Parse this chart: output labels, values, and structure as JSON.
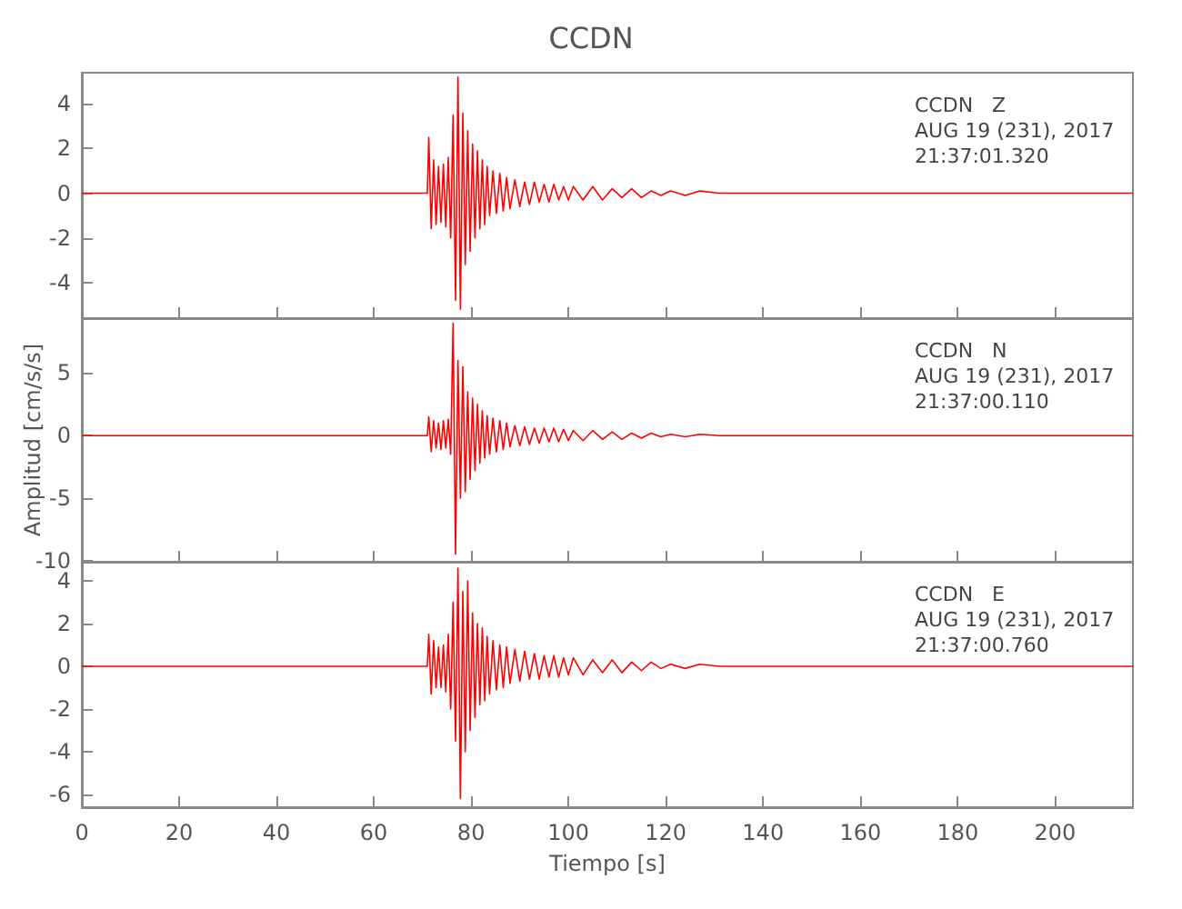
{
  "chart_data": [
    {
      "type": "line",
      "title": "CCDN",
      "annotations": [
        "CCDN   Z",
        "AUG 19 (231), 2017",
        "21:37:01.320"
      ],
      "tick_labels": "y",
      "xlim": [
        0,
        216
      ],
      "xticks": [
        0,
        20,
        40,
        60,
        80,
        100,
        120,
        140,
        160,
        180,
        200
      ],
      "ylim": [
        -5.6,
        5.4
      ],
      "yticks": [
        -4,
        -2,
        0,
        2,
        4
      ],
      "x": [
        0,
        30,
        71.0,
        71.3,
        71.8,
        72.3,
        72.8,
        73.3,
        73.8,
        74.3,
        74.8,
        75.3,
        75.8,
        76.3,
        76.8,
        77.3,
        77.8,
        78.3,
        78.8,
        79.3,
        79.8,
        80.3,
        80.8,
        81.3,
        81.8,
        82.3,
        82.8,
        83.3,
        83.8,
        84.5,
        85.2,
        85.9,
        86.6,
        87.3,
        88,
        89,
        90,
        91,
        92,
        93,
        94,
        95,
        96,
        97,
        98,
        99,
        100,
        101,
        103,
        105,
        107,
        109,
        111,
        113,
        115,
        117,
        119,
        121,
        124,
        127,
        131,
        216
      ],
      "series": [
        {
          "color": "#ff0000",
          "values": [
            0,
            0,
            0,
            2.5,
            -1.6,
            1.5,
            -1.4,
            1.2,
            -1.3,
            1.3,
            -1.5,
            1.6,
            -2.0,
            3.5,
            -4.8,
            5.2,
            -5.2,
            3.6,
            -3.2,
            2.8,
            -2.6,
            2.2,
            -2.0,
            1.9,
            -1.6,
            1.5,
            -1.4,
            1.2,
            -1.0,
            1.0,
            -0.9,
            0.9,
            -0.8,
            0.7,
            -0.7,
            0.6,
            -0.6,
            0.5,
            -0.5,
            0.5,
            -0.4,
            0.4,
            -0.4,
            0.4,
            -0.3,
            0.3,
            -0.3,
            0.3,
            -0.3,
            0.3,
            -0.3,
            0.2,
            -0.2,
            0.2,
            -0.2,
            0.1,
            -0.1,
            0.1,
            -0.1,
            0.1,
            0,
            0
          ]
        }
      ]
    },
    {
      "type": "line",
      "ylabel": "Amplitud [cm/s/s]",
      "annotations": [
        "CCDN   N",
        "AUG 19 (231), 2017",
        "21:37:00.110"
      ],
      "tick_labels": "y",
      "xlim": [
        0,
        216
      ],
      "xticks": [
        0,
        20,
        40,
        60,
        80,
        100,
        120,
        140,
        160,
        180,
        200
      ],
      "ylim": [
        -10.1,
        9.4
      ],
      "yticks": [
        -10,
        -5,
        0,
        5
      ],
      "x": [
        0,
        30,
        71.0,
        71.3,
        71.8,
        72.3,
        72.8,
        73.3,
        73.8,
        74.3,
        74.8,
        75.3,
        75.8,
        76.3,
        76.8,
        77.3,
        77.8,
        78.3,
        78.8,
        79.3,
        79.8,
        80.3,
        80.8,
        81.3,
        81.8,
        82.3,
        82.8,
        83.3,
        83.8,
        84.5,
        85.2,
        85.9,
        86.6,
        87.3,
        88,
        89,
        90,
        91,
        92,
        93,
        94,
        95,
        96,
        97,
        98,
        99,
        100,
        101,
        103,
        105,
        107,
        109,
        111,
        113,
        115,
        117,
        119,
        121,
        124,
        127,
        131,
        216
      ],
      "series": [
        {
          "color": "#ff0000",
          "values": [
            0,
            0,
            0,
            1.5,
            -1.3,
            1.2,
            -1.0,
            1.0,
            -1.1,
            1.2,
            -1.0,
            1.3,
            -1.5,
            9.0,
            -9.5,
            6.0,
            -5.0,
            5.5,
            -4.5,
            3.5,
            -3.5,
            3.0,
            -2.8,
            2.5,
            -2.2,
            2.0,
            -1.8,
            1.6,
            -1.5,
            1.4,
            -1.3,
            1.2,
            -1.1,
            1.0,
            -0.9,
            0.8,
            -0.8,
            0.7,
            -0.7,
            0.6,
            -0.6,
            0.6,
            -0.5,
            0.6,
            -0.5,
            0.5,
            -0.4,
            0.4,
            -0.4,
            0.4,
            -0.3,
            0.3,
            -0.3,
            0.2,
            -0.2,
            0.2,
            -0.1,
            0.1,
            -0.1,
            0.1,
            0,
            0
          ]
        }
      ]
    },
    {
      "type": "line",
      "xlabel": "Tiempo [s]",
      "annotations": [
        "CCDN   E",
        "AUG 19 (231), 2017",
        "21:37:00.760"
      ],
      "xlim": [
        0,
        216
      ],
      "xticks": [
        0,
        20,
        40,
        60,
        80,
        100,
        120,
        140,
        160,
        180,
        200
      ],
      "ylim": [
        -6.6,
        4.9
      ],
      "yticks": [
        -6,
        -4,
        -2,
        0,
        2,
        4
      ],
      "x": [
        0,
        30,
        71.0,
        71.3,
        71.8,
        72.3,
        72.8,
        73.3,
        73.8,
        74.3,
        74.8,
        75.3,
        75.8,
        76.3,
        76.8,
        77.3,
        77.8,
        78.3,
        78.8,
        79.3,
        79.8,
        80.3,
        80.8,
        81.3,
        81.8,
        82.3,
        82.8,
        83.3,
        83.8,
        84.5,
        85.2,
        85.9,
        86.6,
        87.3,
        88,
        89,
        90,
        91,
        92,
        93,
        94,
        95,
        96,
        97,
        98,
        99,
        100,
        101,
        103,
        105,
        107,
        109,
        111,
        113,
        115,
        117,
        119,
        121,
        124,
        127,
        131,
        216
      ],
      "series": [
        {
          "color": "#ff0000",
          "values": [
            0,
            0,
            0,
            1.5,
            -1.3,
            1.2,
            -1.0,
            0.9,
            -1.0,
            1.0,
            -1.2,
            1.5,
            -2.0,
            3.0,
            -3.5,
            4.6,
            -6.2,
            3.5,
            -4.0,
            4.0,
            -3.0,
            2.5,
            -2.4,
            2.0,
            -1.8,
            1.8,
            -1.6,
            1.4,
            -1.3,
            1.2,
            -1.1,
            1.0,
            -1.0,
            0.9,
            -0.8,
            0.8,
            -0.7,
            0.7,
            -0.6,
            0.6,
            -0.6,
            0.5,
            -0.5,
            0.5,
            -0.5,
            0.4,
            -0.4,
            0.4,
            -0.4,
            0.3,
            -0.3,
            0.3,
            -0.3,
            0.2,
            -0.2,
            0.2,
            -0.1,
            0.1,
            -0.1,
            0.1,
            0,
            0
          ]
        }
      ]
    }
  ]
}
